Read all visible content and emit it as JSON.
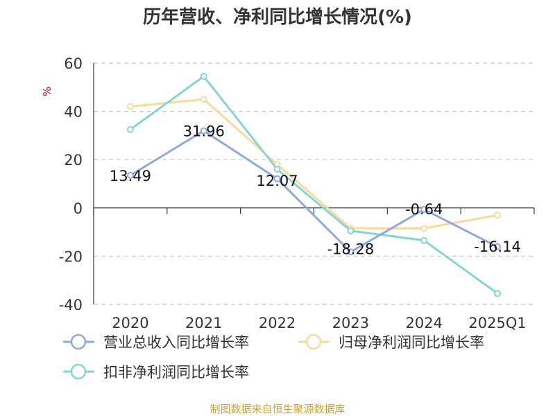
{
  "chart_data": {
    "type": "line",
    "title": "历年营收、净利同比增长情况(%)",
    "unit_label": "%",
    "categories": [
      "2020",
      "2021",
      "2022",
      "2023",
      "2024",
      "2025Q1"
    ],
    "ylim": [
      -40,
      60
    ],
    "yticks": [
      60,
      40,
      20,
      0,
      -20,
      -40
    ],
    "grid": true,
    "legend_position": "bottom",
    "series": [
      {
        "name": "营业总收入同比增长率",
        "color": "#8eaadb",
        "values": [
          13.49,
          31.96,
          12.07,
          -18.28,
          -0.64,
          -16.14
        ],
        "labels": [
          "13.49",
          "31.96",
          "12.07",
          "-18.28",
          "-0.64",
          "-16.14"
        ]
      },
      {
        "name": "归母净利润同比增长率",
        "color": "#fad89a",
        "values": [
          42,
          45,
          18,
          -8.5,
          -8.5,
          -3
        ]
      },
      {
        "name": "扣非净利润同比增长率",
        "color": "#85d4d4",
        "values": [
          32.5,
          54.5,
          16,
          -9.5,
          -13.5,
          -35.5
        ]
      }
    ]
  },
  "source": "制图数据来自恒生聚源数据库"
}
